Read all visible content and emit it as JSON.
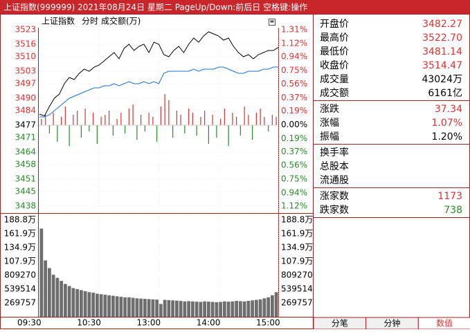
{
  "header": {
    "title": "上证指数(999999)  2021年08月24日  星期二  PageUp/Down:前后日  空格键:操作"
  },
  "chart_data": [
    {
      "type": "line",
      "title": "上证指数",
      "mode": "分时",
      "unit_label": "成交额(万)",
      "x": [
        0,
        1,
        2,
        3,
        4,
        5,
        6,
        7,
        8,
        9,
        10,
        11,
        12,
        13,
        14,
        15,
        16,
        17,
        18,
        19,
        20,
        21,
        22,
        23,
        24,
        25,
        26,
        27,
        28,
        29,
        30,
        31,
        32,
        33,
        34,
        35,
        36,
        37,
        38,
        39,
        40,
        41,
        42,
        43,
        44,
        45,
        46,
        47,
        48
      ],
      "xlim": [
        0,
        48
      ],
      "xticks": [
        {
          "value": 0,
          "label": "09:30"
        },
        {
          "value": 12,
          "label": "10:30"
        },
        {
          "value": 24,
          "label": "13:00"
        },
        {
          "value": 36,
          "label": "14:00"
        },
        {
          "value": 48,
          "label": "15:00"
        }
      ],
      "series": [
        {
          "color": "#000000",
          "values": [
            3482.3,
            3481.5,
            3486,
            3490,
            3492,
            3497,
            3500,
            3499,
            3502,
            3504,
            3503,
            3505,
            3506,
            3508,
            3510,
            3512,
            3509,
            3514,
            3516,
            3513,
            3515,
            3516,
            3512,
            3517,
            3516,
            3511,
            3510,
            3513,
            3515,
            3512,
            3516,
            3519,
            3517,
            3520,
            3522,
            3521,
            3520,
            3518,
            3519,
            3515,
            3512,
            3510,
            3511,
            3509,
            3511,
            3512,
            3513,
            3513,
            3514.47
          ]
        },
        {
          "color": "#1a6fd0",
          "values": [
            3481,
            3481,
            3482,
            3484,
            3486,
            3488,
            3490,
            3491,
            3492,
            3493,
            3494,
            3495,
            3495,
            3496,
            3496,
            3497,
            3496,
            3497,
            3498,
            3497,
            3497,
            3498,
            3497,
            3498,
            3497,
            3502,
            3503,
            3503,
            3503,
            3503,
            3503,
            3504,
            3503,
            3504,
            3504,
            3504,
            3505,
            3505,
            3504,
            3503,
            3502,
            3502,
            3503,
            3503,
            3503,
            3504,
            3504,
            3505,
            3505
          ]
        }
      ],
      "baseline": 3477,
      "bars": [
        3,
        5,
        -4,
        6,
        -8,
        4,
        9,
        -10,
        5,
        7,
        -6,
        8,
        -3,
        6,
        -9,
        4,
        5,
        7,
        -5,
        3,
        6,
        -4,
        8,
        10,
        -7,
        5,
        -3,
        6,
        4,
        -8,
        9,
        15,
        12,
        -6,
        7,
        5,
        -4,
        8,
        6,
        -5,
        4,
        7,
        -9,
        5,
        -6,
        3,
        8,
        -10,
        6,
        4,
        -5,
        9,
        5,
        -7,
        6,
        8,
        4,
        -3,
        5,
        4
      ],
      "up_color": "#e03030",
      "down_color": "#2a8a2a",
      "ylim": [
        3438,
        3523
      ],
      "yticks": [
        3523,
        3516,
        3510,
        3503,
        3497,
        3490,
        3484,
        3477,
        3471,
        3464,
        3458,
        3451,
        3445,
        3438
      ],
      "y2lim": [
        -1.12,
        1.31
      ],
      "y2ticks": [
        {
          "value": 1.31,
          "label": "1.31%"
        },
        {
          "value": 1.12,
          "label": "1.12%"
        },
        {
          "value": 0.94,
          "label": "0.94%"
        },
        {
          "value": 0.75,
          "label": "0.75%"
        },
        {
          "value": 0.56,
          "label": "0.56%"
        },
        {
          "value": 0.37,
          "label": "0.37%"
        },
        {
          "value": 0.19,
          "label": "0.19%"
        },
        {
          "value": 0,
          "label": "0.00%"
        },
        {
          "value": -0.19,
          "label": "0.19%"
        },
        {
          "value": -0.37,
          "label": "0.37%"
        },
        {
          "value": -0.56,
          "label": "0.56%"
        },
        {
          "value": -0.75,
          "label": "0.75%"
        },
        {
          "value": -0.94,
          "label": "0.94%"
        },
        {
          "value": -1.12,
          "label": "1.12%"
        }
      ],
      "grid": true
    },
    {
      "type": "bar",
      "color": "#6e6e6e",
      "values": [
        1720000,
        1100000,
        950000,
        820000,
        760000,
        700000,
        640000,
        600000,
        560000,
        540000,
        520000,
        500000,
        480000,
        470000,
        450000,
        440000,
        430000,
        420000,
        410000,
        400000,
        390000,
        380000,
        380000,
        370000,
        360000,
        355000,
        350000,
        345000,
        340000,
        335000,
        250000,
        330000,
        325000,
        320000,
        315000,
        310000,
        300000,
        305000,
        300000,
        295000,
        290000,
        300000,
        295000,
        290000,
        285000,
        290000,
        300000,
        295000,
        300000,
        310000,
        305000,
        300000,
        310000,
        320000,
        330000,
        340000,
        360000,
        380000,
        420000,
        480000
      ],
      "ylim": [
        0,
        1888299
      ],
      "yticks": [
        {
          "value": 1888299,
          "label": "188.8万"
        },
        {
          "value": 1618542,
          "label": "161.9万"
        },
        {
          "value": 1348785,
          "label": "134.9万"
        },
        {
          "value": 1079028,
          "label": "107.9万"
        },
        809270,
        539514,
        269757
      ]
    }
  ],
  "quote": {
    "sections": [
      [
        {
          "label": "开盘价",
          "value": "3482.27",
          "color": "#e03030"
        },
        {
          "label": "最高价",
          "value": "3522.70",
          "color": "#e03030"
        },
        {
          "label": "最低价",
          "value": "3481.14",
          "color": "#e03030"
        },
        {
          "label": "收盘价",
          "value": "3514.47",
          "color": "#e03030"
        },
        {
          "label": "成交量",
          "value": "43024万",
          "color": "#000000"
        },
        {
          "label": "成交额",
          "value": "6161亿",
          "color": "#000000"
        }
      ],
      [
        {
          "label": "涨跌",
          "value": "37.34",
          "color": "#e03030"
        },
        {
          "label": "涨幅",
          "value": "1.07%",
          "color": "#e03030"
        },
        {
          "label": "振幅",
          "value": "1.20%",
          "color": "#000000"
        }
      ],
      [
        {
          "label": "换手率"
        },
        {
          "label": "总股本"
        },
        {
          "label": "流通股"
        }
      ],
      [
        {
          "label": "涨家数",
          "value": "1173",
          "color": "#e03030"
        },
        {
          "label": "跌家数",
          "value": "738",
          "color": "#2a8a2a"
        }
      ]
    ]
  },
  "tabs": [
    "分笔",
    "分钟",
    "数值"
  ]
}
